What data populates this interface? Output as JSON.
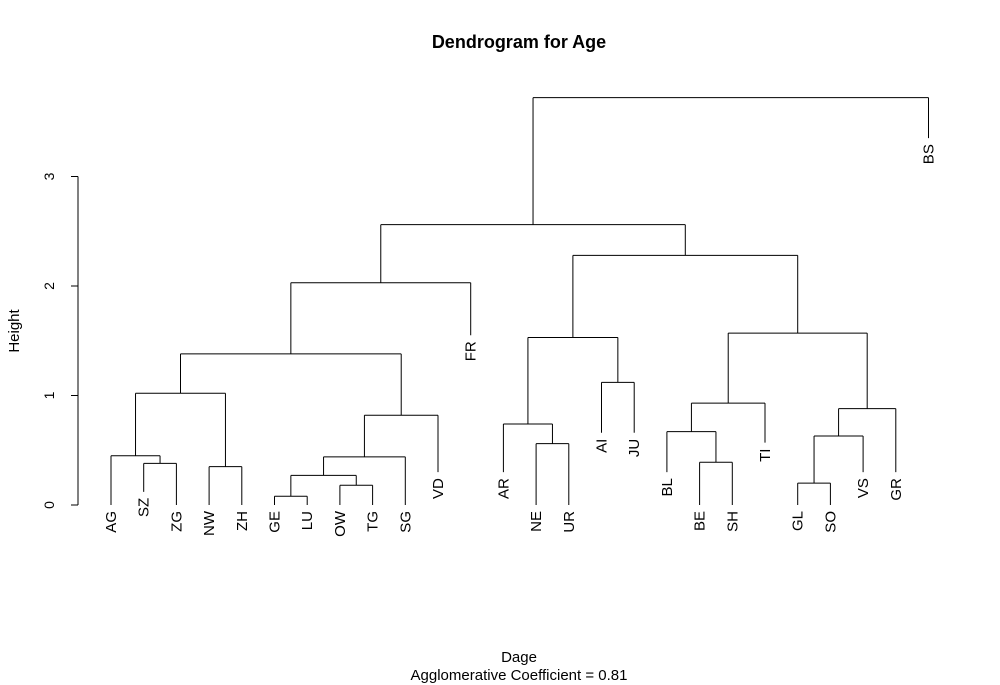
{
  "chart_data": {
    "type": "dendrogram",
    "title": "Dendrogram for Age",
    "ylabel": "Height",
    "xlabel": "Dage",
    "sublabel": "Agglomerative Coefficient =  0.81",
    "yticks": [
      0,
      1,
      2,
      3
    ],
    "ylim": [
      0,
      3.72
    ],
    "leaves": [
      "AG",
      "SZ",
      "ZG",
      "NW",
      "ZH",
      "GE",
      "LU",
      "OW",
      "TG",
      "SG",
      "VD",
      "FR",
      "AR",
      "NE",
      "UR",
      "AI",
      "JU",
      "BL",
      "BE",
      "SH",
      "TI",
      "GL",
      "SO",
      "VS",
      "GR",
      "BS"
    ],
    "leaf_heights": {
      "AG": 0.0,
      "SZ": 0.12,
      "ZG": 0.0,
      "NW": 0.0,
      "ZH": 0.0,
      "GE": 0.0,
      "LU": 0.0,
      "OW": 0.0,
      "TG": 0.0,
      "SG": 0.0,
      "VD": 0.3,
      "FR": 1.55,
      "AR": 0.3,
      "NE": 0.0,
      "UR": 0.0,
      "AI": 0.66,
      "JU": 0.66,
      "BL": 0.3,
      "BE": 0.0,
      "SH": 0.0,
      "TI": 0.57,
      "GL": 0.0,
      "SO": 0.0,
      "VS": 0.3,
      "GR": 0.3,
      "BS": 3.35
    },
    "merges": [
      {
        "a": "SZ",
        "b": "ZG",
        "height": 0.38
      },
      {
        "a": "AG",
        "b": "SZ+ZG",
        "height": 0.45
      },
      {
        "a": "NW",
        "b": "ZH",
        "height": 0.35
      },
      {
        "a": "AG+SZ+ZG",
        "b": "NW+ZH",
        "height": 1.02
      },
      {
        "a": "GE",
        "b": "LU",
        "height": 0.08
      },
      {
        "a": "OW",
        "b": "TG",
        "height": 0.18
      },
      {
        "a": "GE+LU",
        "b": "OW+TG",
        "height": 0.27
      },
      {
        "a": "GE+LU+OW+TG",
        "b": "SG",
        "height": 0.44
      },
      {
        "a": "GE..SG",
        "b": "VD",
        "height": 0.82
      },
      {
        "a": "AG..ZH",
        "b": "GE..VD",
        "height": 1.38
      },
      {
        "a": "AG..VD",
        "b": "FR",
        "height": 2.03
      },
      {
        "a": "NE",
        "b": "UR",
        "height": 0.56
      },
      {
        "a": "AR",
        "b": "NE+UR",
        "height": 0.74
      },
      {
        "a": "AI",
        "b": "JU",
        "height": 1.12
      },
      {
        "a": "AR+NE+UR",
        "b": "AI+JU",
        "height": 1.53
      },
      {
        "a": "BE",
        "b": "SH",
        "height": 0.39
      },
      {
        "a": "BL",
        "b": "BE+SH",
        "height": 0.67
      },
      {
        "a": "BL+BE+SH",
        "b": "TI",
        "height": 0.93
      },
      {
        "a": "GL",
        "b": "SO",
        "height": 0.2
      },
      {
        "a": "GL+SO",
        "b": "VS",
        "height": 0.63
      },
      {
        "a": "GL+SO+VS",
        "b": "GR",
        "height": 0.88
      },
      {
        "a": "BL..TI",
        "b": "GL..GR",
        "height": 1.57
      },
      {
        "a": "AR..JU",
        "b": "BL..GR",
        "height": 2.28
      },
      {
        "a": "AG..FR",
        "b": "AR..GR",
        "height": 2.56
      },
      {
        "a": "AG..GR",
        "b": "BS",
        "height": 3.72
      }
    ]
  }
}
